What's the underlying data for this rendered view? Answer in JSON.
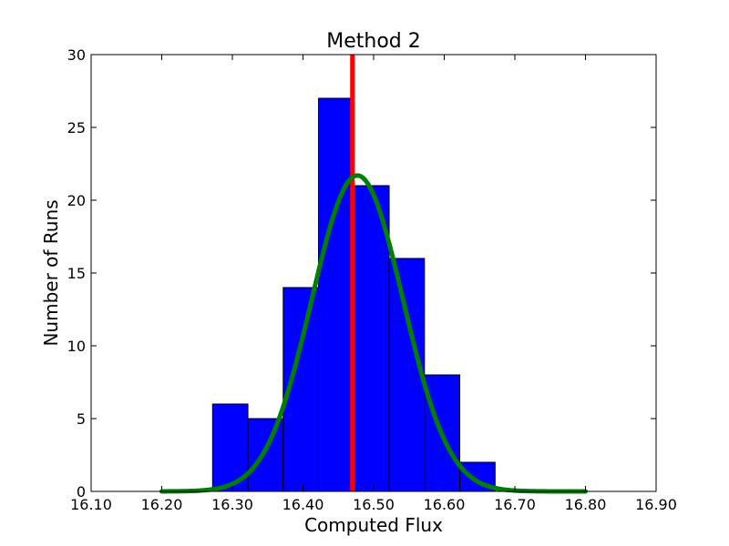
{
  "chart_data": {
    "type": "bar",
    "title": "Method 2",
    "xlabel": "Computed Flux",
    "ylabel": "Number of Runs",
    "xlim": [
      16.1,
      16.9
    ],
    "ylim": [
      0,
      30
    ],
    "xticks": [
      "16.10",
      "16.20",
      "16.30",
      "16.40",
      "16.50",
      "16.60",
      "16.70",
      "16.80",
      "16.90"
    ],
    "yticks": [
      "0",
      "5",
      "10",
      "15",
      "20",
      "25",
      "30"
    ],
    "grid": false,
    "bins": [
      {
        "x0": 16.272,
        "x1": 16.322,
        "count": 6
      },
      {
        "x0": 16.322,
        "x1": 16.372,
        "count": 5
      },
      {
        "x0": 16.372,
        "x1": 16.422,
        "count": 14
      },
      {
        "x0": 16.422,
        "x1": 16.472,
        "count": 27
      },
      {
        "x0": 16.472,
        "x1": 16.522,
        "count": 21
      },
      {
        "x0": 16.522,
        "x1": 16.572,
        "count": 16
      },
      {
        "x0": 16.572,
        "x1": 16.622,
        "count": 8
      },
      {
        "x0": 16.622,
        "x1": 16.672,
        "count": 2
      }
    ],
    "bar_color": "#0000ff",
    "reference_line": {
      "x": 16.47,
      "color": "#ff0000"
    },
    "fit_curve": {
      "type": "gaussian",
      "mean": 16.477,
      "sigma": 0.0647,
      "peak": 21.7,
      "x_range": [
        16.2,
        16.8
      ],
      "color": "#008000"
    }
  }
}
